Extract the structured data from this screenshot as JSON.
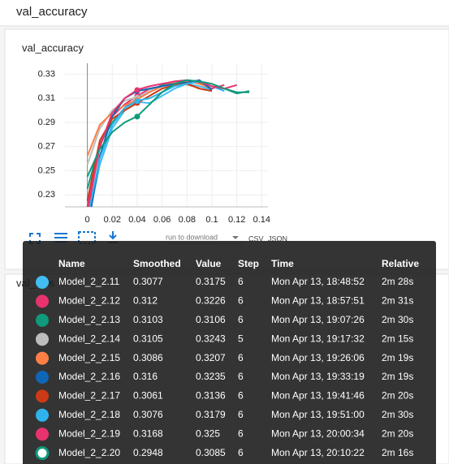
{
  "header": {
    "title": "val_accuracy"
  },
  "chart_data": {
    "type": "line",
    "title": "val_accuracy",
    "x": [
      0,
      0.01,
      0.02,
      0.03,
      0.04,
      0.05,
      0.06,
      0.07,
      0.08,
      0.09,
      0.1,
      0.11,
      0.12,
      0.13
    ],
    "xlim": [
      -0.018,
      0.145
    ],
    "ylim": [
      0.22,
      0.339
    ],
    "xticks": [
      {
        "value": 0,
        "label": "0"
      },
      {
        "value": 0.02,
        "label": "0.02"
      },
      {
        "value": 0.04,
        "label": "0.04"
      },
      {
        "value": 0.06,
        "label": "0.06"
      },
      {
        "value": 0.08,
        "label": "0.08"
      },
      {
        "value": 0.1,
        "label": "0.1"
      },
      {
        "value": 0.12,
        "label": "0.12"
      },
      {
        "value": 0.14,
        "label": "0.14"
      }
    ],
    "yticks": [
      0.23,
      0.25,
      0.27,
      0.29,
      0.31,
      0.33
    ],
    "hover_x": 0.04,
    "series": [
      {
        "name": "Model_2_2.11",
        "color": "#42bdf2",
        "values": [
          0.205,
          0.255,
          0.285,
          0.3,
          0.307,
          0.306,
          0.312,
          0.318,
          0.322,
          0.32,
          0.317,
          null,
          null,
          null
        ]
      },
      {
        "name": "Model_2_2.12",
        "color": "#e8336f",
        "values": [
          0.215,
          0.27,
          0.295,
          0.305,
          0.312,
          0.318,
          0.32,
          0.322,
          0.324,
          0.323,
          0.318,
          0.321,
          null,
          null
        ]
      },
      {
        "name": "Model_2_2.13",
        "color": "#0e9a7b",
        "values": [
          0.235,
          0.272,
          0.29,
          0.302,
          0.31,
          0.316,
          0.321,
          0.324,
          0.325,
          0.323,
          0.32,
          0.318,
          0.315,
          0.315
        ]
      },
      {
        "name": "Model_2_2.14",
        "color": "#bdbdbd",
        "values": [
          0.255,
          0.285,
          0.3,
          0.308,
          0.311,
          0.316,
          0.32,
          0.322,
          0.321,
          0.319,
          null,
          null,
          null,
          null
        ]
      },
      {
        "name": "Model_2_2.15",
        "color": "#ff7f47",
        "values": [
          0.262,
          0.288,
          0.298,
          0.304,
          0.309,
          0.315,
          0.32,
          0.323,
          0.324,
          0.322,
          0.318,
          null,
          null,
          null
        ]
      },
      {
        "name": "Model_2_2.16",
        "color": "#1066b6",
        "values": [
          0.2,
          0.262,
          0.295,
          0.31,
          0.316,
          0.318,
          0.32,
          0.322,
          0.323,
          0.325,
          0.317,
          null,
          null,
          null
        ]
      },
      {
        "name": "Model_2_2.17",
        "color": "#cc3a15",
        "values": [
          0.225,
          0.275,
          0.293,
          0.3,
          0.306,
          0.312,
          0.318,
          0.321,
          0.322,
          0.318,
          0.316,
          null,
          null,
          null
        ]
      },
      {
        "name": "Model_2_2.18",
        "color": "#2fb3ec",
        "values": [
          0.21,
          0.26,
          0.288,
          0.302,
          0.308,
          0.31,
          0.315,
          0.32,
          0.322,
          0.324,
          0.32,
          0.316,
          null,
          null
        ]
      },
      {
        "name": "Model_2_2.19",
        "color": "#e8336f",
        "values": [
          0.22,
          0.27,
          0.298,
          0.31,
          0.317,
          0.32,
          0.322,
          0.324,
          0.325,
          0.324,
          0.32,
          0.318,
          0.321,
          null
        ]
      },
      {
        "name": "Model_2_2.20",
        "color": "#0e9a7b",
        "values": [
          0.245,
          0.268,
          0.282,
          0.29,
          0.295,
          0.305,
          0.315,
          0.322,
          0.325,
          0.324,
          0.322,
          0.318,
          0.314,
          0.316
        ]
      }
    ]
  },
  "toolbar": {
    "download_label": "run to download",
    "csv": "CSV",
    "json": "JSON"
  },
  "second_card": {
    "title": "val_loss"
  },
  "tooltip": {
    "columns": [
      "Name",
      "Smoothed",
      "Value",
      "Step",
      "Time",
      "Relative"
    ],
    "rows": [
      [
        "Model_2_2.11",
        0.3077,
        0.3175,
        6,
        "Mon Apr 13, 18:48:52",
        "2m 28s"
      ],
      [
        "Model_2_2.12",
        0.312,
        0.3226,
        6,
        "Mon Apr 13, 18:57:51",
        "2m 31s"
      ],
      [
        "Model_2_2.13",
        0.3103,
        0.3106,
        6,
        "Mon Apr 13, 19:07:26",
        "2m 30s"
      ],
      [
        "Model_2_2.14",
        0.3105,
        0.3243,
        5,
        "Mon Apr 13, 19:17:32",
        "2m 15s"
      ],
      [
        "Model_2_2.15",
        0.3086,
        0.3207,
        6,
        "Mon Apr 13, 19:26:06",
        "2m 19s"
      ],
      [
        "Model_2_2.16",
        0.316,
        0.3235,
        6,
        "Mon Apr 13, 19:33:19",
        "2m 19s"
      ],
      [
        "Model_2_2.17",
        0.3061,
        0.3136,
        6,
        "Mon Apr 13, 19:41:46",
        "2m 20s"
      ],
      [
        "Model_2_2.18",
        0.3076,
        0.3179,
        6,
        "Mon Apr 13, 19:51:00",
        "2m 30s"
      ],
      [
        "Model_2_2.19",
        0.3168,
        0.325,
        6,
        "Mon Apr 13, 20:00:34",
        "2m 20s"
      ],
      [
        "Model_2_2.20",
        0.2948,
        0.3085,
        6,
        "Mon Apr 13, 20:10:22",
        "2m 16s"
      ]
    ]
  }
}
